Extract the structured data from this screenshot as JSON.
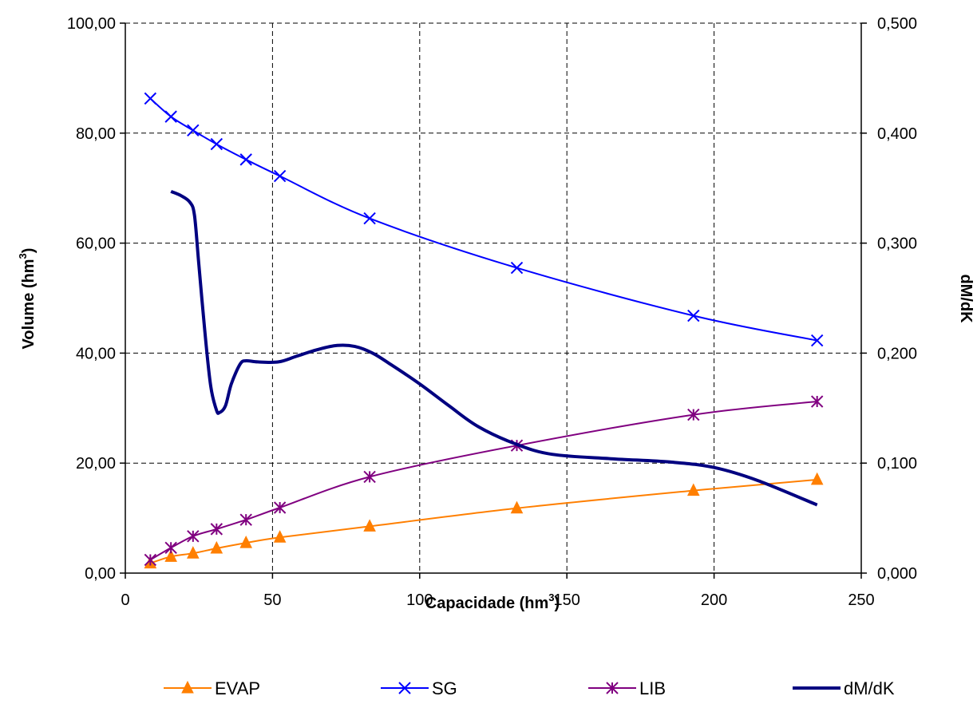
{
  "chart_data": {
    "type": "line",
    "xlabel": "Capacidade (hm",
    "xlabel_sup": "3",
    "xlabel_suffix": ")",
    "ylabel": "Volume (hm",
    "ylabel_sup": "3",
    "ylabel_suffix": ")",
    "y2label": "dM/dK",
    "xlim": [
      0,
      250
    ],
    "ylim": [
      0,
      100
    ],
    "y2lim": [
      0,
      0.5
    ],
    "grid": true,
    "legend_position": "bottom",
    "x_ticks": [
      "0",
      "50",
      "100",
      "150",
      "200",
      "250"
    ],
    "y_ticks": [
      "0,00",
      "20,00",
      "40,00",
      "60,00",
      "80,00",
      "100,00"
    ],
    "y2_ticks": [
      "0,000",
      "0,100",
      "0,200",
      "0,300",
      "0,400",
      "0,500"
    ],
    "series": [
      {
        "name": "EVAP",
        "axis": "left",
        "color": "#FF7F00",
        "marker": "triangle",
        "x": [
          8.5,
          15.5,
          23,
          31,
          41,
          52.5,
          83,
          133,
          193,
          235
        ],
        "y": [
          1.8,
          3.0,
          3.6,
          4.5,
          5.5,
          6.5,
          8.5,
          11.8,
          15.0,
          17.0
        ]
      },
      {
        "name": "SG",
        "axis": "left",
        "color": "#0000FF",
        "marker": "x",
        "x": [
          8.5,
          15.5,
          23,
          31,
          41,
          52.5,
          83,
          133,
          193,
          235
        ],
        "y": [
          86.3,
          83.0,
          80.5,
          78.0,
          75.2,
          72.2,
          64.5,
          55.5,
          46.8,
          42.3
        ]
      },
      {
        "name": "LIB",
        "axis": "left",
        "color": "#800080",
        "marker": "star",
        "x": [
          8.5,
          15.5,
          23,
          31,
          41,
          52.5,
          83,
          133,
          193,
          235
        ],
        "y": [
          2.4,
          4.6,
          6.7,
          8.0,
          9.7,
          11.9,
          17.5,
          23.2,
          28.8,
          31.2
        ]
      },
      {
        "name": "dM/dK",
        "axis": "right",
        "color": "#000080",
        "marker": "none",
        "x": [
          15.5,
          19,
          22,
          23.5,
          25,
          27,
          29,
          31,
          32,
          34,
          36,
          39,
          41,
          45,
          52,
          58,
          65,
          72,
          78,
          84,
          90,
          100,
          110,
          120,
          133,
          145,
          165,
          185,
          200,
          215,
          235
        ],
        "y": [
          0.347,
          0.343,
          0.337,
          0.325,
          0.28,
          0.22,
          0.17,
          0.148,
          0.146,
          0.152,
          0.172,
          0.19,
          0.193,
          0.192,
          0.192,
          0.197,
          0.203,
          0.207,
          0.206,
          0.2,
          0.19,
          0.172,
          0.152,
          0.133,
          0.117,
          0.108,
          0.104,
          0.101,
          0.096,
          0.084,
          0.062
        ]
      }
    ]
  }
}
